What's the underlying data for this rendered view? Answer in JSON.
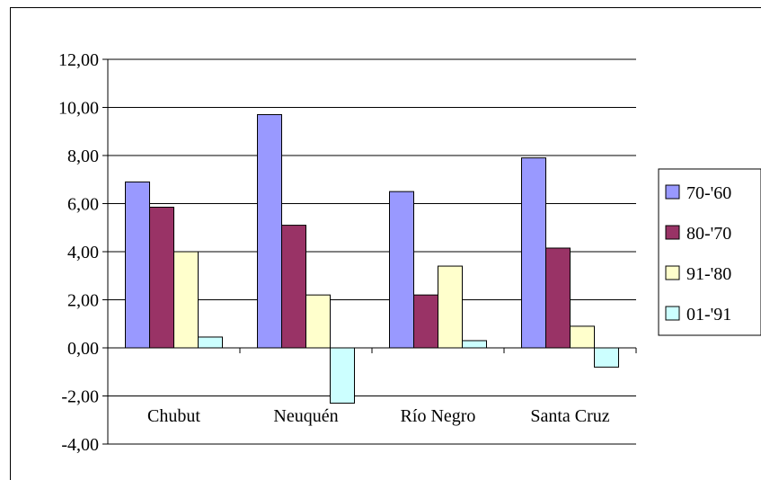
{
  "chart_data": {
    "type": "bar",
    "categories": [
      "Chubut",
      "Neuquén",
      "Río Negro",
      "Santa Cruz"
    ],
    "series": [
      {
        "name": "70-'60",
        "values": [
          6.9,
          9.7,
          6.5,
          7.9
        ],
        "color": "#9999ff"
      },
      {
        "name": "80-'70",
        "values": [
          5.85,
          5.1,
          2.2,
          4.15
        ],
        "color": "#993366"
      },
      {
        "name": "91-'80",
        "values": [
          4.0,
          2.2,
          3.4,
          0.9
        ],
        "color": "#ffffcc"
      },
      {
        "name": "01-'91",
        "values": [
          0.45,
          -2.3,
          0.3,
          -0.8
        ],
        "color": "#ccffff"
      }
    ],
    "ylim": [
      -4,
      12
    ],
    "yticks": [
      "12,00",
      "10,00",
      "8,00",
      "6,00",
      "4,00",
      "2,00",
      "0,00",
      "-2,00",
      "-4,00"
    ],
    "ytick_values": [
      12,
      10,
      8,
      6,
      4,
      2,
      0,
      -2,
      -4
    ],
    "grid": true,
    "legend_position": "right",
    "title": "",
    "xlabel": "",
    "ylabel": ""
  }
}
